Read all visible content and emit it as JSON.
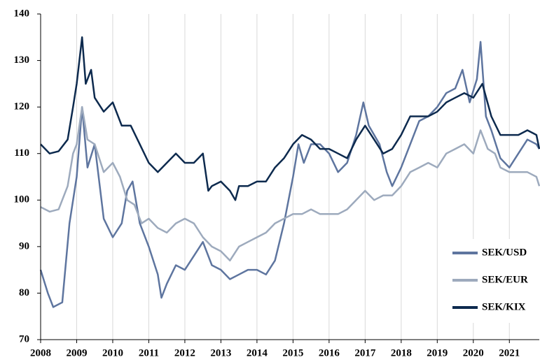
{
  "chart_data": {
    "type": "line",
    "xlim": [
      2008,
      2021.83
    ],
    "xticks": [
      2008,
      2009,
      2010,
      2011,
      2012,
      2013,
      2014,
      2015,
      2016,
      2017,
      2018,
      2019,
      2020,
      2021
    ],
    "ylim": [
      70,
      140
    ],
    "yticks": [
      70,
      80,
      90,
      100,
      110,
      120,
      130,
      140
    ],
    "grid": "x",
    "legend": "lower right",
    "series": [
      {
        "name": "SEK/USD",
        "color": "#5e759f",
        "x": [
          2008.0,
          2008.2,
          2008.35,
          2008.6,
          2008.8,
          2009.0,
          2009.15,
          2009.3,
          2009.5,
          2009.75,
          2010.0,
          2010.25,
          2010.4,
          2010.55,
          2010.75,
          2011.0,
          2011.25,
          2011.35,
          2011.5,
          2011.75,
          2012.0,
          2012.25,
          2012.5,
          2012.75,
          2013.0,
          2013.25,
          2013.5,
          2013.75,
          2014.0,
          2014.25,
          2014.5,
          2014.75,
          2015.0,
          2015.15,
          2015.3,
          2015.5,
          2015.75,
          2016.0,
          2016.25,
          2016.5,
          2016.75,
          2016.95,
          2017.1,
          2017.4,
          2017.6,
          2017.75,
          2018.0,
          2018.25,
          2018.5,
          2018.75,
          2019.0,
          2019.25,
          2019.5,
          2019.7,
          2019.9,
          2020.1,
          2020.2,
          2020.35,
          2020.5,
          2020.75,
          2021.0,
          2021.25,
          2021.5,
          2021.75,
          2021.83
        ],
        "values": [
          85,
          80,
          77,
          78,
          95,
          105,
          120,
          107,
          112,
          96,
          92,
          95,
          102,
          104,
          95,
          90,
          84,
          79,
          82,
          86,
          85,
          88,
          91,
          86,
          85,
          83,
          84,
          85,
          85,
          84,
          87,
          95,
          105,
          112,
          108,
          112,
          112,
          110,
          106,
          108,
          114,
          121,
          116,
          112,
          106,
          103,
          107,
          112,
          117,
          118,
          120,
          123,
          124,
          128,
          121,
          126,
          134,
          118,
          115,
          109,
          107,
          110,
          113,
          112,
          111
        ]
      },
      {
        "name": "SEK/EUR",
        "color": "#9daabd",
        "x": [
          2008.0,
          2008.25,
          2008.5,
          2008.75,
          2008.9,
          2009.0,
          2009.15,
          2009.3,
          2009.5,
          2009.75,
          2010.0,
          2010.2,
          2010.4,
          2010.6,
          2010.8,
          2011.0,
          2011.25,
          2011.5,
          2011.75,
          2012.0,
          2012.25,
          2012.5,
          2012.75,
          2013.0,
          2013.25,
          2013.5,
          2013.75,
          2014.0,
          2014.25,
          2014.5,
          2014.75,
          2015.0,
          2015.25,
          2015.5,
          2015.75,
          2016.0,
          2016.25,
          2016.5,
          2016.75,
          2017.0,
          2017.25,
          2017.5,
          2017.75,
          2018.0,
          2018.25,
          2018.5,
          2018.75,
          2019.0,
          2019.25,
          2019.5,
          2019.75,
          2020.0,
          2020.2,
          2020.4,
          2020.6,
          2020.75,
          2021.0,
          2021.25,
          2021.5,
          2021.75,
          2021.83
        ],
        "values": [
          98.5,
          97.5,
          98,
          103,
          110,
          112,
          120,
          113,
          112,
          106,
          108,
          105,
          100,
          99,
          95,
          96,
          94,
          93,
          95,
          96,
          95,
          92,
          90,
          89,
          87,
          90,
          91,
          92,
          93,
          95,
          96,
          97,
          97,
          98,
          97,
          97,
          97,
          98,
          100,
          102,
          100,
          101,
          101,
          103,
          106,
          107,
          108,
          107,
          110,
          111,
          112,
          110,
          115,
          111,
          110,
          107,
          106,
          106,
          106,
          105,
          103
        ]
      },
      {
        "name": "SEK/KIX",
        "color": "#0d2a4e",
        "x": [
          2008.0,
          2008.25,
          2008.5,
          2008.75,
          2008.9,
          2009.0,
          2009.15,
          2009.25,
          2009.4,
          2009.5,
          2009.75,
          2010.0,
          2010.25,
          2010.5,
          2010.75,
          2011.0,
          2011.25,
          2011.5,
          2011.75,
          2012.0,
          2012.25,
          2012.5,
          2012.65,
          2012.75,
          2013.0,
          2013.25,
          2013.4,
          2013.5,
          2013.75,
          2014.0,
          2014.25,
          2014.5,
          2014.75,
          2015.0,
          2015.25,
          2015.5,
          2015.75,
          2016.0,
          2016.25,
          2016.5,
          2016.75,
          2017.0,
          2017.25,
          2017.5,
          2017.75,
          2018.0,
          2018.25,
          2018.5,
          2018.75,
          2019.0,
          2019.25,
          2019.5,
          2019.75,
          2020.0,
          2020.25,
          2020.5,
          2020.75,
          2021.0,
          2021.25,
          2021.5,
          2021.75,
          2021.83
        ],
        "values": [
          112,
          110,
          110.5,
          113,
          120,
          125,
          135,
          125,
          128,
          122,
          119,
          121,
          116,
          116,
          112,
          108,
          106,
          108,
          110,
          108,
          108,
          110,
          102,
          103,
          104,
          102,
          100,
          103,
          103,
          104,
          104,
          107,
          109,
          112,
          114,
          113,
          111,
          111,
          110,
          109,
          113,
          116,
          113,
          110,
          111,
          114,
          118,
          118,
          118,
          119,
          121,
          122,
          123,
          122,
          125,
          118,
          114,
          114,
          114,
          115,
          114,
          111
        ]
      }
    ]
  }
}
